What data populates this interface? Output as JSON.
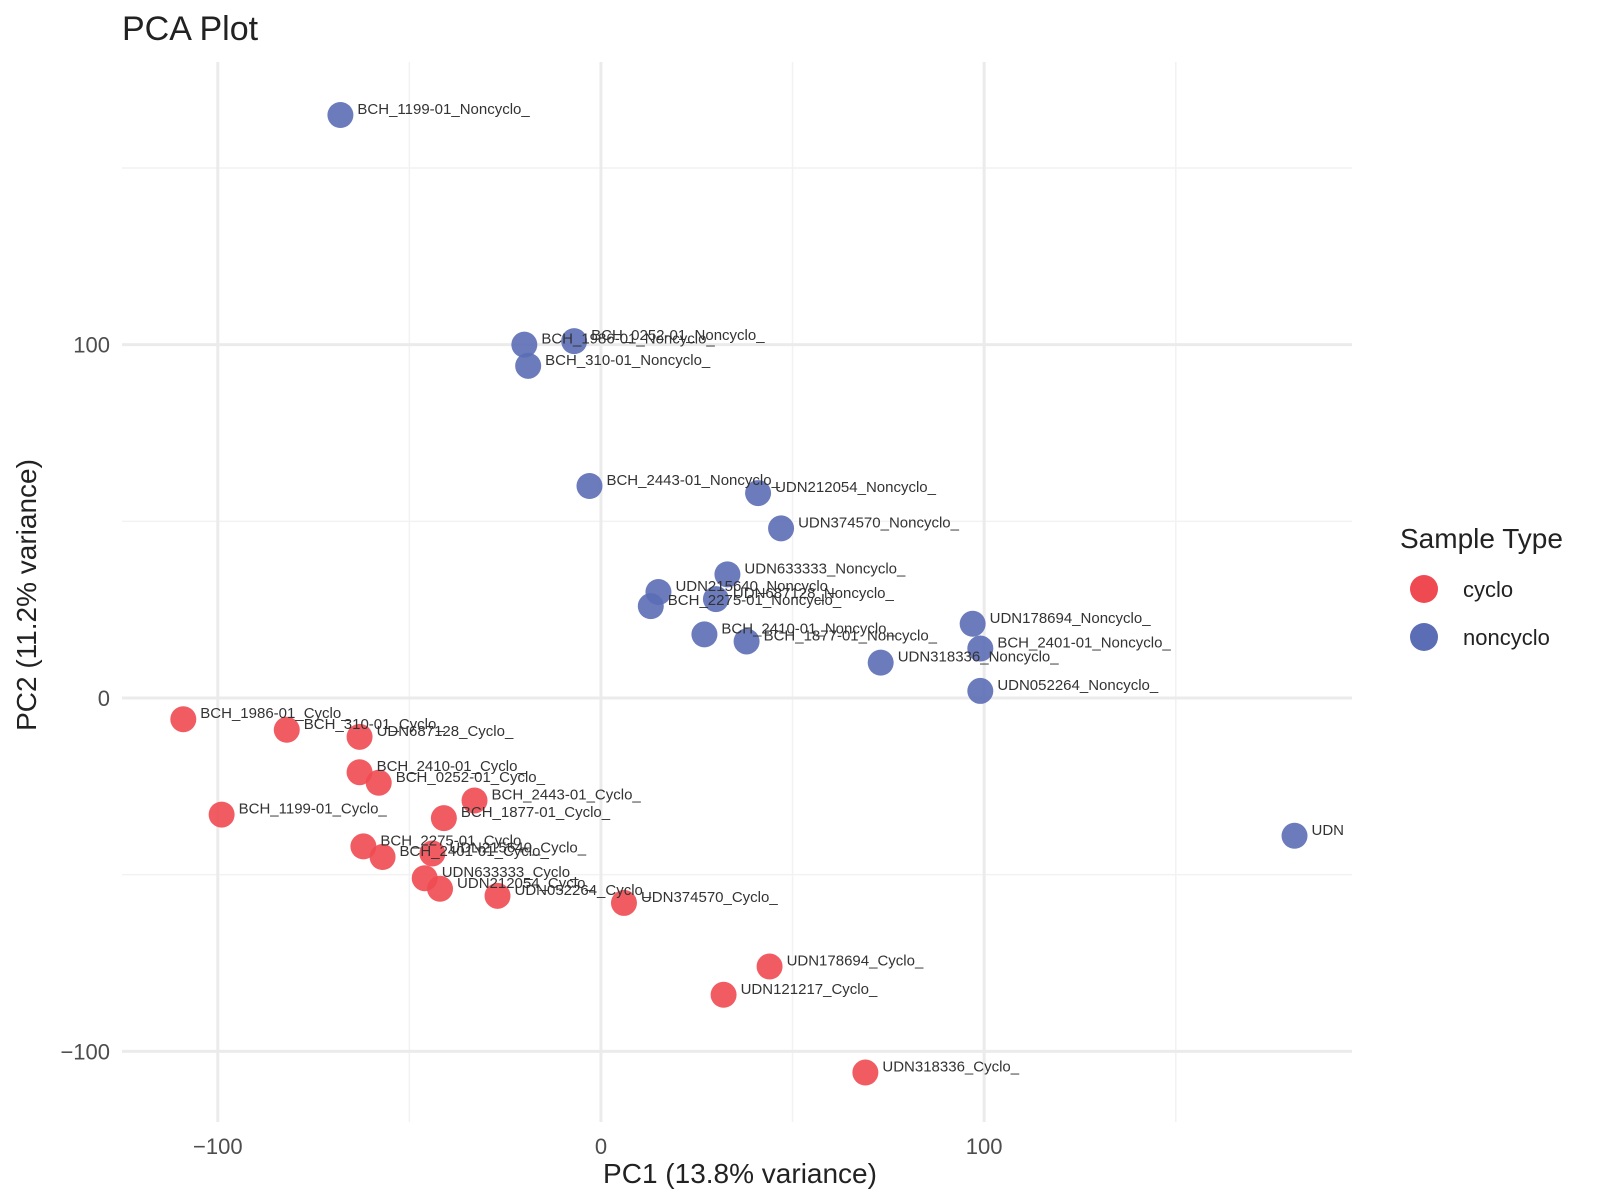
{
  "chart_data": {
    "type": "scatter",
    "title": "PCA Plot",
    "xlabel": "PC1 (13.8% variance)",
    "ylabel": "PC2 (11.2% variance)",
    "xlim": [
      -125,
      196
    ],
    "ylim": [
      -120,
      180
    ],
    "x_ticks": [
      -100,
      0,
      100
    ],
    "x_tick_labels": [
      "−100",
      "0",
      "100"
    ],
    "y_ticks": [
      -100,
      0,
      100
    ],
    "y_tick_labels": [
      "−100",
      "0",
      "100"
    ],
    "x_minor": [
      -50,
      50,
      150
    ],
    "y_minor": [
      -50,
      50,
      150
    ],
    "grid": true,
    "legend": {
      "title": "Sample Type",
      "position": "right",
      "entries": [
        {
          "label": "cyclo",
          "color": "#ef4a52"
        },
        {
          "label": "noncyclo",
          "color": "#5b6db5"
        }
      ]
    },
    "series": [
      {
        "name": "cyclo",
        "color": "#ef4a52",
        "points": [
          {
            "x": -109,
            "y": -6,
            "label": "BCH_1986-01_Cyclo_"
          },
          {
            "x": -82,
            "y": -9,
            "label": "BCH_310-01_Cyclo_"
          },
          {
            "x": -63,
            "y": -11,
            "label": "UDN687128_Cyclo_"
          },
          {
            "x": -63,
            "y": -21,
            "label": "BCH_2410-01_Cyclo_"
          },
          {
            "x": -58,
            "y": -24,
            "label": "BCH_0252-01_Cyclo_"
          },
          {
            "x": -99,
            "y": -33,
            "label": "BCH_1199-01_Cyclo_"
          },
          {
            "x": -33,
            "y": -29,
            "label": "BCH_2443-01_Cyclo_"
          },
          {
            "x": -41,
            "y": -34,
            "label": "BCH_1877-01_Cyclo_"
          },
          {
            "x": -62,
            "y": -42,
            "label": "BCH_2275-01_Cyclo_"
          },
          {
            "x": -57,
            "y": -45,
            "label": "BCH_2401-01_Cyclo_"
          },
          {
            "x": -44,
            "y": -44,
            "label": "UDN215640_Cyclo_"
          },
          {
            "x": -46,
            "y": -51,
            "label": "UDN633333_Cyclo_"
          },
          {
            "x": -42,
            "y": -54,
            "label": "UDN212054_Cyclo_"
          },
          {
            "x": -27,
            "y": -56,
            "label": "UDN052264_Cyclo_"
          },
          {
            "x": 6,
            "y": -58,
            "label": "UDN374570_Cyclo_"
          },
          {
            "x": 44,
            "y": -76,
            "label": "UDN178694_Cyclo_"
          },
          {
            "x": 32,
            "y": -84,
            "label": "UDN121217_Cyclo_"
          },
          {
            "x": 69,
            "y": -106,
            "label": "UDN318336_Cyclo_"
          }
        ]
      },
      {
        "name": "noncyclo",
        "color": "#5b6db5",
        "points": [
          {
            "x": -68,
            "y": 165,
            "label": "BCH_1199-01_Noncyclo_"
          },
          {
            "x": -20,
            "y": 100,
            "label": "BCH_1986-01_Noncyclo_"
          },
          {
            "x": -7,
            "y": 101,
            "label": "BCH_0252-01_Noncyclo_"
          },
          {
            "x": -19,
            "y": 94,
            "label": "BCH_310-01_Noncyclo_"
          },
          {
            "x": -3,
            "y": 60,
            "label": "BCH_2443-01_Noncyclo_"
          },
          {
            "x": 41,
            "y": 58,
            "label": "UDN212054_Noncyclo_"
          },
          {
            "x": 47,
            "y": 48,
            "label": "UDN374570_Noncyclo_"
          },
          {
            "x": 33,
            "y": 35,
            "label": "UDN633333_Noncyclo_"
          },
          {
            "x": 15,
            "y": 30,
            "label": "UDN215640_Noncyclo_"
          },
          {
            "x": 30,
            "y": 28,
            "label": "UDN687128_Noncyclo_"
          },
          {
            "x": 13,
            "y": 26,
            "label": "BCH_2275-01_Noncyclo_"
          },
          {
            "x": 27,
            "y": 18,
            "label": "BCH_2410-01_Noncyclo_"
          },
          {
            "x": 38,
            "y": 16,
            "label": "BCH_1877-01_Noncyclo_"
          },
          {
            "x": 97,
            "y": 21,
            "label": "UDN178694_Noncyclo_"
          },
          {
            "x": 99,
            "y": 14,
            "label": "BCH_2401-01_Noncyclo_"
          },
          {
            "x": 73,
            "y": 10,
            "label": "UDN318336_Noncyclo_"
          },
          {
            "x": 99,
            "y": 2,
            "label": "UDN052264_Noncyclo_"
          },
          {
            "x": 181,
            "y": -39,
            "label": "UDN"
          }
        ]
      }
    ]
  }
}
